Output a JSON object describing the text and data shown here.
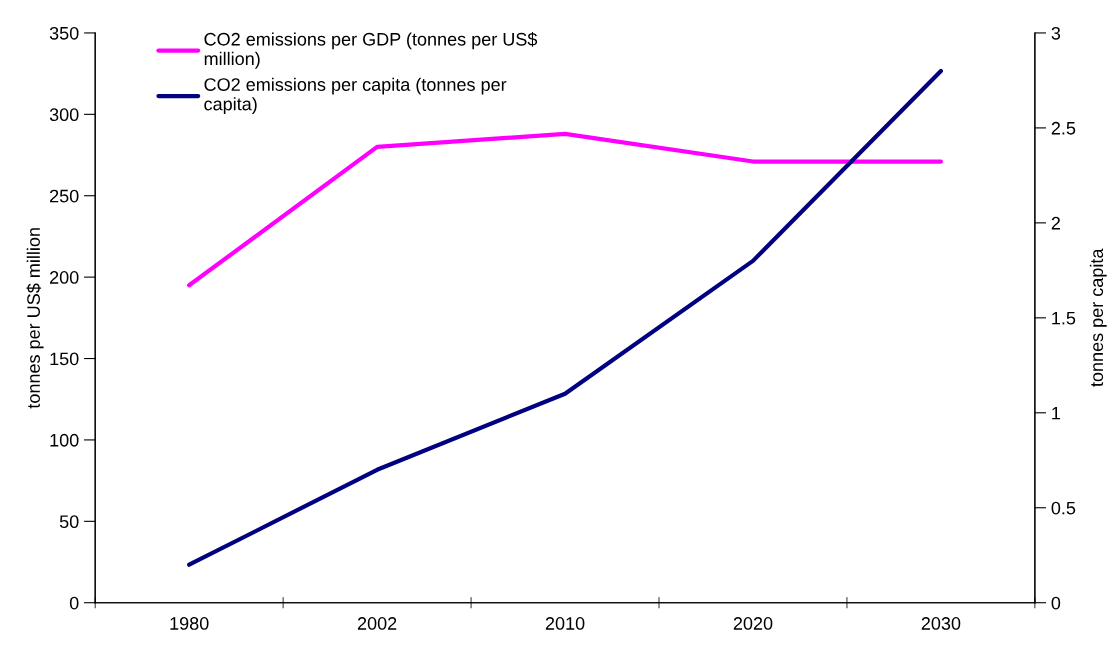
{
  "chart_data": {
    "type": "line",
    "categories": [
      "1980",
      "2002",
      "2010",
      "2020",
      "2030"
    ],
    "series": [
      {
        "name": "CO2 emissions per GDP (tonnes per US$\nmillion)",
        "color": "#ff00ff",
        "values": [
          195,
          280,
          288,
          271,
          271
        ]
      },
      {
        "name": "CO2 emissions per capita (tonnes per\ncapita)",
        "color": "#000080",
        "values": [
          0.2,
          0.7,
          1.1,
          1.8,
          2.8
        ],
        "axis": "y2"
      }
    ],
    "ylabel": "tonnes per US$ million",
    "y2label": "tonnes per capita",
    "ylim": [
      0,
      350
    ],
    "yticks": [
      0,
      50,
      100,
      150,
      200,
      250,
      300,
      350
    ],
    "y2lim": [
      0,
      3
    ],
    "y2ticks": [
      0,
      {
        "value": 0.5,
        "label": "0.5"
      },
      1,
      {
        "value": 1.5,
        "label": "1.5"
      },
      2,
      {
        "value": 2.5,
        "label": "2.5"
      },
      3
    ],
    "legend": "top left",
    "grid": false,
    "marker": "none",
    "line_style": "solid"
  }
}
